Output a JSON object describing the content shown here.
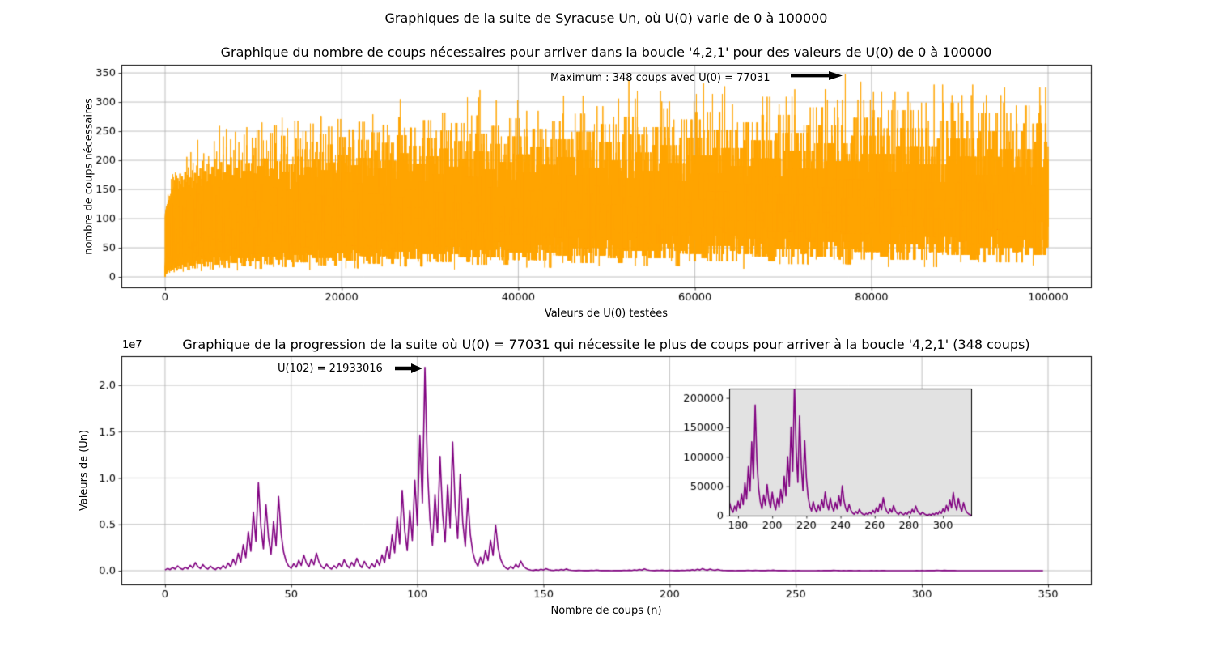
{
  "figure": {
    "suptitle": "Graphiques de la suite de Syracuse Un, où U(0) varie de 0 à 100000",
    "background": "#ffffff"
  },
  "colors": {
    "grid": "#b0b0b0",
    "axes_frame": "#000000",
    "tick_text": "#000000",
    "annotation_arrow": "#000000",
    "inset_background": "#e2e2e2"
  },
  "chart_data": [
    {
      "type": "line",
      "title": "Graphique du nombre de coups nécessaires pour arriver dans la boucle '4,2,1' pour des valeurs de U(0) de 0 à 100000",
      "xlabel": "Valeurs de U(0) testées",
      "ylabel": "nombre de coups nécessaires",
      "color": "#ffa500",
      "line_width": 1.0,
      "grid": true,
      "xlim": [
        -4950,
        104857
      ],
      "ylim": [
        -18,
        364
      ],
      "xticks": [
        0,
        20000,
        40000,
        60000,
        80000,
        100000
      ],
      "xtick_labels": [
        "0",
        "20000",
        "40000",
        "60000",
        "80000",
        "100000"
      ],
      "yticks": [
        0,
        50,
        100,
        150,
        200,
        250,
        300,
        350
      ],
      "ytick_labels": [
        "0",
        "50",
        "100",
        "150",
        "200",
        "250",
        "300",
        "350"
      ],
      "series": {
        "name": "nombre de coups nécessaires",
        "generator": {
          "rule": "syracuse_steps_to_loop_421",
          "description": "Pour chaque U(0) de 0 à 100000 : nombre d'itérations (u pair -> u/2, u impair -> 3u+1) avant d'atteindre la boucle 4,2,1",
          "u0_start": 0,
          "u0_end": 100000
        }
      },
      "max_point": {
        "x": 77031,
        "y": 348
      },
      "annotation": {
        "text": "Maximum : 348 coups avec U(0) = 77031",
        "points_to_x": 77031,
        "points_to_y": 348
      }
    },
    {
      "type": "line",
      "title": "Graphique de la progression de la suite où U(0) = 77031 qui nécessite le plus de coups pour arriver à la boucle '4,2,1' (348 coups)",
      "xlabel": "Nombre de coups (n)",
      "ylabel": "Valeurs de (Un)",
      "y_offset_label": "1e7",
      "color": "#800080",
      "line_width": 1.6,
      "grid": true,
      "xlim": [
        -17.3,
        367
      ],
      "ylim": [
        -1485000,
        23144000
      ],
      "xticks": [
        0,
        50,
        100,
        150,
        200,
        250,
        300,
        350
      ],
      "xtick_labels": [
        "0",
        "50",
        "100",
        "150",
        "200",
        "250",
        "300",
        "350"
      ],
      "yticks": [
        0,
        5000000,
        10000000,
        15000000,
        20000000
      ],
      "ytick_labels": [
        "0.0",
        "0.5",
        "1.0",
        "1.5",
        "2.0"
      ],
      "series": {
        "name": "U(n)",
        "generator": {
          "rule": "syracuse_sequence",
          "description": "U(n+1) = U(n)/2 si U(n) pair, 3*U(n)+1 sinon ; arrêt en entrant dans la boucle 4,2,1",
          "u0": 77031,
          "n_steps": 348,
          "stops_at": 4
        }
      },
      "max_point": {
        "x": 102,
        "y": 21933016
      },
      "annotation": {
        "text": "U(102) = 21933016",
        "points_to_x": 102,
        "points_to_y": 21933016
      },
      "inset": {
        "xlim": [
          174.8,
          316.5
        ],
        "ylim": [
          0,
          216000
        ],
        "xticks": [
          180,
          200,
          220,
          240,
          260,
          280,
          300
        ],
        "xtick_labels": [
          "180",
          "200",
          "220",
          "240",
          "260",
          "280",
          "300"
        ],
        "yticks": [
          0,
          50000,
          100000,
          150000,
          200000
        ],
        "ytick_labels": [
          "0",
          "50000",
          "100000",
          "150000",
          "200000"
        ],
        "grid": false
      }
    }
  ]
}
